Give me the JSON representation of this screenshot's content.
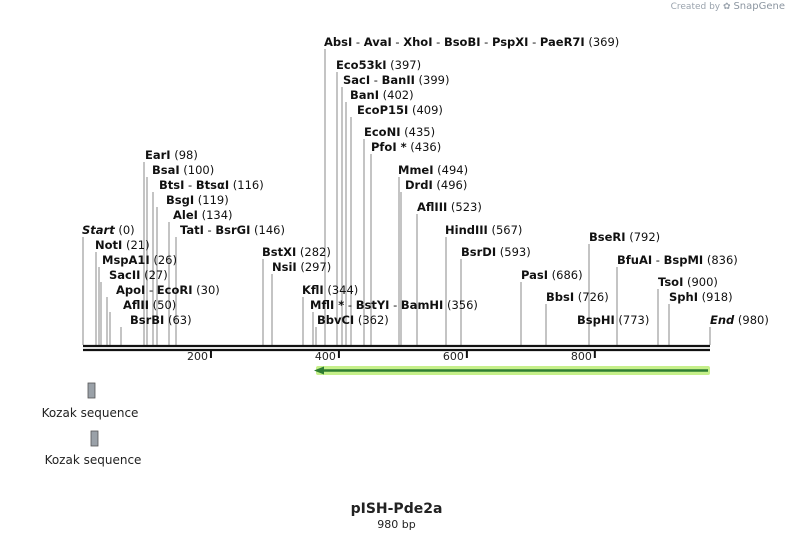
{
  "watermark": {
    "prefix": "Created by",
    "brand": "SnapGene",
    "icon": "snapgene-logo-icon"
  },
  "plasmid": {
    "name": "pISH-Pde2a",
    "length": "980 bp"
  },
  "ruler": {
    "ticks": [
      "200",
      "400",
      "600",
      "800"
    ]
  },
  "sites": [
    {
      "names": [
        "AbsI",
        "AvaI",
        "XhoI",
        "BsoBI",
        "PspXI",
        "PaeR7I"
      ],
      "pos": "(369)"
    },
    {
      "names": [
        "Eco53kI"
      ],
      "pos": "(397)"
    },
    {
      "names": [
        "SacI",
        "BanII"
      ],
      "pos": "(399)"
    },
    {
      "names": [
        "BanI"
      ],
      "pos": "(402)"
    },
    {
      "names": [
        "EcoP15I"
      ],
      "pos": "(409)"
    },
    {
      "names": [
        "EcoNI"
      ],
      "pos": "(435)"
    },
    {
      "names": [
        "PfoI *"
      ],
      "pos": "(436)"
    },
    {
      "names": [
        "EarI"
      ],
      "pos": "(98)"
    },
    {
      "names": [
        "BsaI"
      ],
      "pos": "(100)"
    },
    {
      "names": [
        "BtsI",
        "BtsαI"
      ],
      "pos": "(116)"
    },
    {
      "names": [
        "BsgI"
      ],
      "pos": "(119)"
    },
    {
      "names": [
        "AleI"
      ],
      "pos": "(134)"
    },
    {
      "names": [
        "TatI",
        "BsrGI"
      ],
      "pos": "(146)"
    },
    {
      "names": [
        "Start"
      ],
      "pos": "(0)",
      "italic": true
    },
    {
      "names": [
        "NotI"
      ],
      "pos": "(21)"
    },
    {
      "names": [
        "MspA1I"
      ],
      "pos": "(26)"
    },
    {
      "names": [
        "SacII"
      ],
      "pos": "(27)"
    },
    {
      "names": [
        "ApoI",
        "EcoRI"
      ],
      "pos": "(30)"
    },
    {
      "names": [
        "AflII"
      ],
      "pos": "(50)"
    },
    {
      "names": [
        "BsrBI"
      ],
      "pos": "(63)"
    },
    {
      "names": [
        "BstXI"
      ],
      "pos": "(282)"
    },
    {
      "names": [
        "NsiI"
      ],
      "pos": "(297)"
    },
    {
      "names": [
        "KflI"
      ],
      "pos": "(344)"
    },
    {
      "names": [
        "MflI *",
        "BstYI",
        "BamHI"
      ],
      "pos": "(356)"
    },
    {
      "names": [
        "BbvCI"
      ],
      "pos": "(362)"
    },
    {
      "names": [
        "MmeI"
      ],
      "pos": "(494)"
    },
    {
      "names": [
        "DrdI"
      ],
      "pos": "(496)"
    },
    {
      "names": [
        "AflIII"
      ],
      "pos": "(523)"
    },
    {
      "names": [
        "HindIII"
      ],
      "pos": "(567)"
    },
    {
      "names": [
        "BsrDI"
      ],
      "pos": "(593)"
    },
    {
      "names": [
        "PasI"
      ],
      "pos": "(686)"
    },
    {
      "names": [
        "BbsI"
      ],
      "pos": "(726)"
    },
    {
      "names": [
        "BseRI"
      ],
      "pos": "(792)"
    },
    {
      "names": [
        "BfuAI",
        "BspMI"
      ],
      "pos": "(836)"
    },
    {
      "names": [
        "BspHI"
      ],
      "pos": "(773)"
    },
    {
      "names": [
        "TsoI"
      ],
      "pos": "(900)"
    },
    {
      "names": [
        "SphI"
      ],
      "pos": "(918)"
    },
    {
      "names": [
        "End"
      ],
      "pos": "(980)",
      "italic": true
    }
  ],
  "features": [
    {
      "name": "Kozak sequence"
    },
    {
      "name": "Kozak sequence"
    }
  ],
  "colors": {
    "arrow_fill": "#2e7d32",
    "arrow_glow": "#c6f08a",
    "feature_box": "#9aa1a8",
    "backbone": "#111111",
    "site_line": "#888888"
  }
}
